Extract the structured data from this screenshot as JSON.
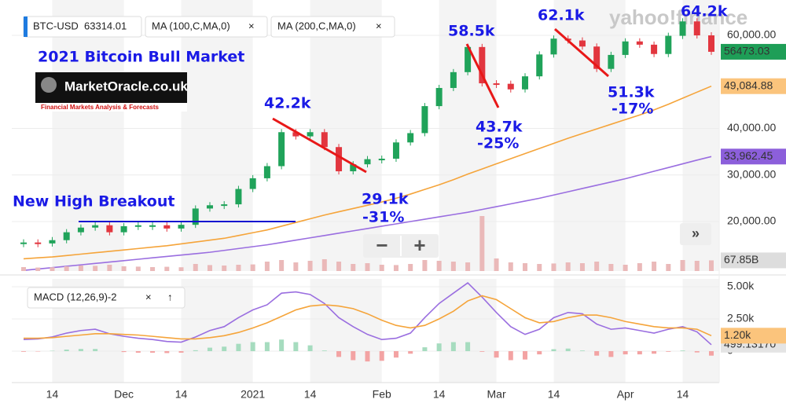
{
  "watermark": "yahoo!finance",
  "logo": {
    "name": "MarketOracle.co.uk",
    "tagline": "Financial Markets Analysis & Forecasts"
  },
  "chart_data": [
    {
      "type": "candlestick",
      "title": "2021 Bitcoin Bull Market",
      "symbol": "BTC-USD",
      "quote": 63314.01,
      "annotations": [
        "New High Breakout",
        "42.2k",
        "29.1k",
        "-31%",
        "58.5k",
        "43.7k",
        "-25%",
        "62.1k",
        "51.3k",
        "-17%",
        "64.2k"
      ],
      "categories": [
        null,
        null,
        "14",
        null,
        null,
        null,
        null,
        "Dec",
        null,
        null,
        null,
        "14",
        null,
        null,
        null,
        null,
        "2021",
        null,
        null,
        null,
        "14",
        null,
        null,
        null,
        null,
        "Feb",
        null,
        null,
        null,
        "14",
        null,
        null,
        null,
        "Mar",
        null,
        null,
        null,
        "14",
        null,
        null,
        null,
        null,
        "Apr",
        null,
        null,
        null,
        "14",
        null,
        null
      ],
      "ylim": [
        9370,
        67600
      ],
      "yticks": [
        {
          "value": 20000,
          "label": "20,000.00"
        },
        {
          "value": 30000,
          "label": "30,000.00"
        },
        {
          "value": 40000,
          "label": "40,000.00"
        },
        {
          "value": 60000,
          "label": "60,000.00"
        }
      ],
      "y2lim": [
        0,
        1725
      ],
      "grid": true,
      "series": [
        {
          "kind": "candle",
          "up_color": "#20a35a",
          "down_color": "#e2363f",
          "flag_color": "#1e9e57",
          "flag_text": "#ffffff",
          "last_label": "56473.03",
          "values": [
            15500,
            15300,
            16000,
            17700,
            18700,
            19200,
            17700,
            19000,
            19200,
            19200,
            18500,
            19300,
            22800,
            23500,
            23700,
            27000,
            29300,
            31900,
            39200,
            38300,
            39200,
            36000,
            30800,
            32300,
            33400,
            33500,
            37000,
            39000,
            44800,
            48700,
            52100,
            57500,
            49700,
            49600,
            48400,
            51200,
            55900,
            59300,
            58900,
            57600,
            52800,
            55800,
            58700,
            58000,
            56000,
            59900,
            63000,
            60000,
            56473.03
          ]
        },
        {
          "name": "MA (100,C,MA,0)",
          "kind": "line",
          "color": "#f5a43a",
          "flag_color": "#fbc47c",
          "flag_text": "#222222",
          "last_label": "49,084.88",
          "values": [
            12000,
            12200,
            12400,
            12700,
            13000,
            13300,
            13600,
            13900,
            14200,
            14500,
            14800,
            15200,
            15600,
            16000,
            16400,
            17000,
            17600,
            18200,
            19000,
            19800,
            20600,
            21400,
            22100,
            22800,
            23500,
            24200,
            25000,
            25900,
            26900,
            27900,
            29000,
            30200,
            31300,
            32400,
            33500,
            34600,
            35700,
            36800,
            37900,
            38900,
            39900,
            40900,
            41900,
            42900,
            44000,
            45200,
            46500,
            47800,
            49084.88
          ]
        },
        {
          "name": "MA (200,C,MA,0)",
          "kind": "line",
          "color": "#9a6ee0",
          "flag_color": "#8c5fdb",
          "flag_text": "#ffffff",
          "last_label": "33,962.45",
          "values": [
            9500,
            9800,
            10100,
            10400,
            10700,
            11000,
            11300,
            11600,
            11900,
            12200,
            12500,
            12800,
            13100,
            13400,
            13800,
            14200,
            14600,
            15000,
            15500,
            16000,
            16500,
            17000,
            17500,
            18000,
            18500,
            19000,
            19500,
            20000,
            20500,
            21000,
            21500,
            22000,
            22600,
            23200,
            23800,
            24400,
            25000,
            25700,
            26400,
            27100,
            27800,
            28500,
            29200,
            30000,
            30800,
            31600,
            32400,
            33200,
            33962.45
          ]
        },
        {
          "kind": "bar",
          "axis": "y2",
          "color": "#eab9b9",
          "flag_color": "#dddddd",
          "flag_text": "#222222",
          "last_label": "67.85B",
          "values": [
            25,
            22,
            24,
            30,
            35,
            33,
            40,
            30,
            28,
            25,
            27,
            24,
            45,
            38,
            35,
            40,
            42,
            60,
            70,
            55,
            65,
            75,
            60,
            45,
            50,
            40,
            38,
            45,
            70,
            65,
            60,
            55,
            350,
            80,
            55,
            50,
            45,
            48,
            55,
            50,
            60,
            45,
            40,
            50,
            60,
            45,
            70,
            65,
            67.85
          ]
        }
      ]
    },
    {
      "type": "line",
      "legend": "MACD (12,26,9)-2",
      "ylim": [
        -2440,
        5610
      ],
      "yticks": [
        0,
        {
          "value": 2500,
          "label": "2.50k"
        },
        {
          "value": 5000,
          "label": "5.00k"
        }
      ],
      "grid": true,
      "series": [
        {
          "kind": "line",
          "color": "#9a6ee0",
          "flag_color": "#e4e4e4",
          "flag_text": "#222222",
          "last_label": "499.13170",
          "values": [
            900,
            950,
            1100,
            1400,
            1600,
            1700,
            1350,
            1150,
            1000,
            900,
            750,
            700,
            1100,
            1600,
            1900,
            2600,
            3200,
            3600,
            4500,
            4600,
            4400,
            3700,
            2600,
            1900,
            1300,
            900,
            1000,
            1400,
            2600,
            3700,
            4500,
            5300,
            4200,
            3000,
            1900,
            1300,
            1700,
            2600,
            3000,
            2900,
            2100,
            1700,
            1800,
            1600,
            1400,
            1700,
            1900,
            1500,
            499.1317
          ]
        },
        {
          "kind": "line",
          "color": "#f5a43a",
          "flag_color": "#fbc47c",
          "flag_text": "#222222",
          "last_label": "1.20k",
          "values": [
            1000,
            1000,
            1050,
            1150,
            1250,
            1350,
            1350,
            1300,
            1250,
            1150,
            1050,
            950,
            950,
            1050,
            1200,
            1450,
            1800,
            2200,
            2700,
            3200,
            3500,
            3600,
            3500,
            3300,
            2900,
            2400,
            2000,
            1800,
            2000,
            2500,
            3100,
            3900,
            4300,
            4000,
            3300,
            2600,
            2200,
            2300,
            2600,
            2800,
            2800,
            2600,
            2300,
            2100,
            1900,
            1800,
            1800,
            1700,
            1200
          ]
        },
        {
          "kind": "hist",
          "up_color": "#a6dcbf",
          "down_color": "#f3a3a3",
          "values": [
            -50,
            -30,
            30,
            120,
            170,
            170,
            0,
            -70,
            -120,
            -120,
            -150,
            -120,
            70,
            270,
            350,
            570,
            700,
            700,
            900,
            700,
            450,
            50,
            -450,
            -700,
            -800,
            -750,
            -500,
            -200,
            300,
            600,
            700,
            700,
            -50,
            -500,
            -700,
            -650,
            -250,
            150,
            200,
            50,
            -350,
            -450,
            -250,
            -250,
            -200,
            -50,
            50,
            -100,
            -350
          ]
        }
      ]
    }
  ]
}
